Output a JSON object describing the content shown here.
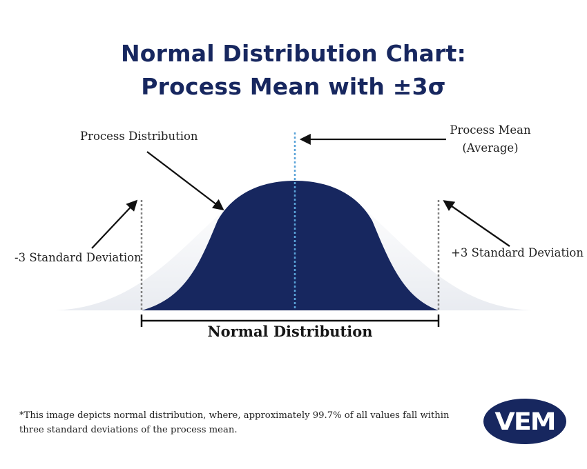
{
  "title": {
    "line1": "Normal Distribution Chart:",
    "line2": "Process Mean with ±3σ"
  },
  "labels": {
    "process_distribution": "Process Distribution",
    "process_mean_line1": "Process Mean",
    "process_mean_line2": "(Average)",
    "minus_3_sd": "-3 Standard Deviation",
    "plus_3_sd": "+3 Standard Deviation",
    "range": "Normal Distribution"
  },
  "footnote": "*This image depicts normal distribution, where, approximately 99.7% of all values fall within three standard deviations of the process mean.",
  "logo": {
    "text": "VEM"
  },
  "colors": {
    "navy": "#17275f",
    "mean_line": "#5aa3d8",
    "sd_line": "#808080",
    "arrow": "#111111"
  }
}
